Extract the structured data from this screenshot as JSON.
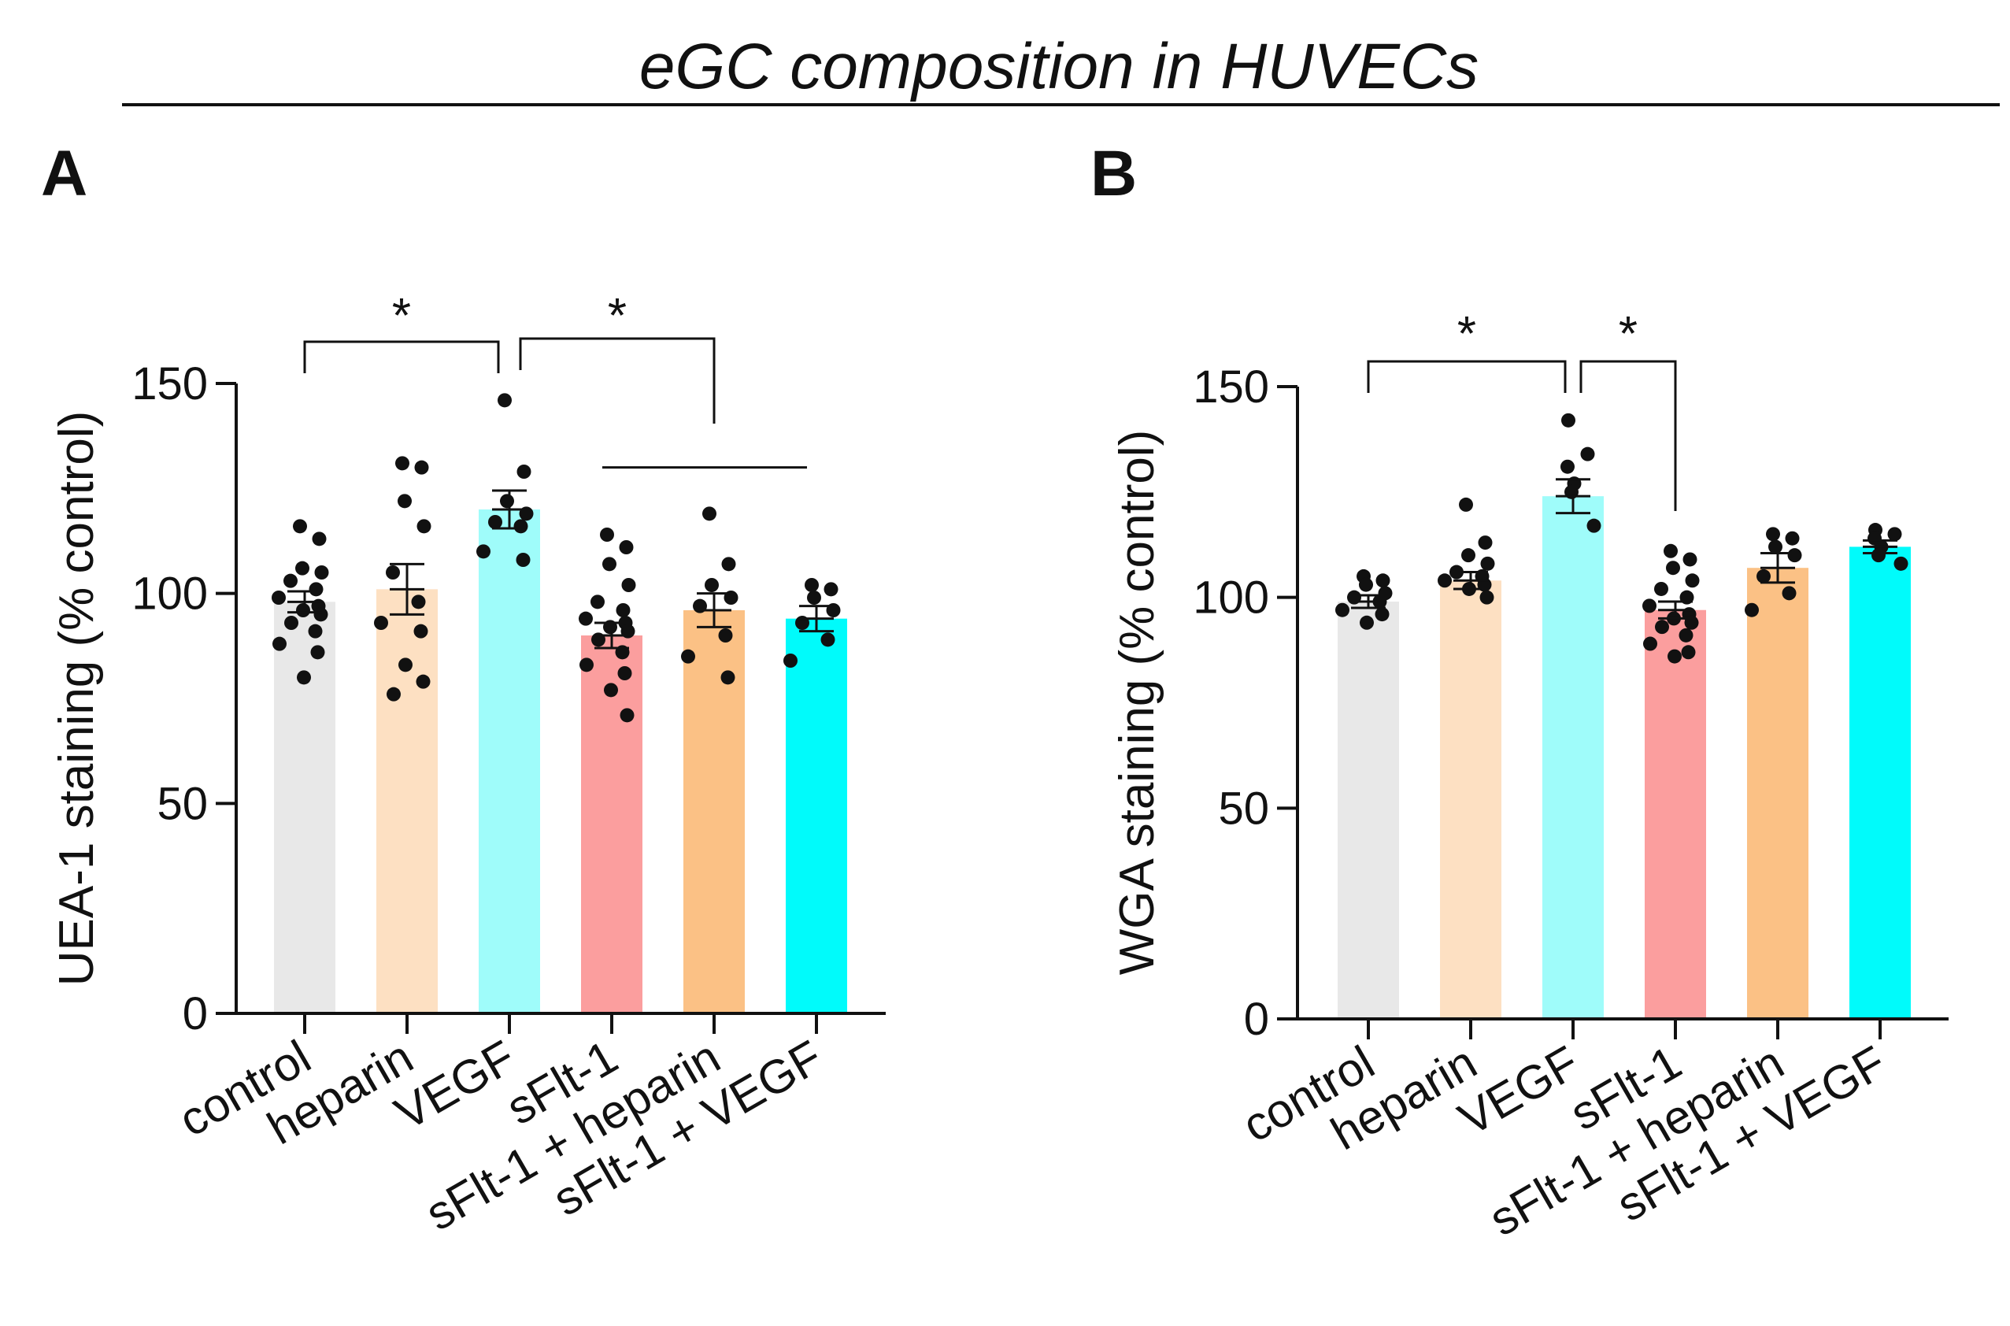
{
  "figure": {
    "title": "eGC composition in HUVECs"
  },
  "colors": {
    "control": "#e8e8e8",
    "heparin": "#fde0c2",
    "VEGF": "#9ffcfa",
    "sFlt-1": "#fb9e9e",
    "sFlt-1 + heparin": "#fbc185",
    "sFlt-1 + VEGF": "#00fbfb",
    "ink": "#111111"
  },
  "chart_data": [
    {
      "panel": "A",
      "type": "bar",
      "title": "",
      "xlabel": "",
      "ylabel": "UEA-1 staining (% control)",
      "ylim": [
        0,
        150
      ],
      "yticks": [
        0,
        50,
        100,
        150
      ],
      "categories": [
        "control",
        "heparin",
        "VEGF",
        "sFlt-1",
        "sFlt-1 + heparin",
        "sFlt-1 + VEGF"
      ],
      "values": [
        98,
        101,
        120,
        90,
        96,
        94
      ],
      "sem": [
        2.5,
        6,
        4.5,
        3,
        4,
        3
      ],
      "points": [
        [
          116,
          113,
          106,
          105,
          103,
          101,
          99,
          97,
          96,
          95,
          93,
          91,
          88,
          86,
          80
        ],
        [
          131,
          130,
          122,
          116,
          105,
          98,
          93,
          91,
          83,
          79,
          76
        ],
        [
          146,
          129,
          122,
          119,
          117,
          116,
          110,
          108
        ],
        [
          114,
          111,
          107,
          102,
          98,
          96,
          94,
          93,
          92,
          91,
          89,
          86,
          83,
          81,
          77,
          71
        ],
        [
          119,
          107,
          102,
          99,
          97,
          90,
          85,
          80
        ],
        [
          102,
          101,
          99,
          96,
          93,
          89,
          84
        ]
      ],
      "significance": [
        {
          "from": "control",
          "to": "VEGF",
          "label": "*"
        },
        {
          "from": "VEGF",
          "to": "sFlt-1 + heparin",
          "label": "*"
        }
      ],
      "group_line": {
        "from": "sFlt-1",
        "to": "sFlt-1 + VEGF"
      }
    },
    {
      "panel": "B",
      "type": "bar",
      "title": "",
      "xlabel": "",
      "ylabel": "WGA staining (% control)",
      "ylim": [
        0,
        150
      ],
      "yticks": [
        0,
        50,
        100,
        150
      ],
      "categories": [
        "control",
        "heparin",
        "VEGF",
        "sFlt-1",
        "sFlt-1 + heparin",
        "sFlt-1 + VEGF"
      ],
      "values": [
        99,
        104,
        124,
        97,
        107,
        112
      ],
      "sem": [
        1.5,
        2,
        4,
        2,
        3.5,
        1.5
      ],
      "points": [
        [
          105,
          104,
          103,
          101,
          100,
          99,
          97,
          96,
          94
        ],
        [
          122,
          113,
          110,
          108,
          106,
          105,
          104,
          103,
          102,
          100
        ],
        [
          142,
          134,
          131,
          127,
          125,
          117
        ],
        [
          111,
          109,
          107,
          104,
          102,
          100,
          98,
          96,
          95,
          94,
          93,
          91,
          89,
          87,
          86
        ],
        [
          115,
          114,
          112,
          110,
          105,
          101,
          97
        ],
        [
          116,
          115,
          114,
          112,
          110,
          108
        ]
      ],
      "significance": [
        {
          "from": "control",
          "to": "VEGF",
          "label": "*"
        },
        {
          "from": "VEGF",
          "to": "sFlt-1",
          "label": "*"
        }
      ]
    }
  ]
}
